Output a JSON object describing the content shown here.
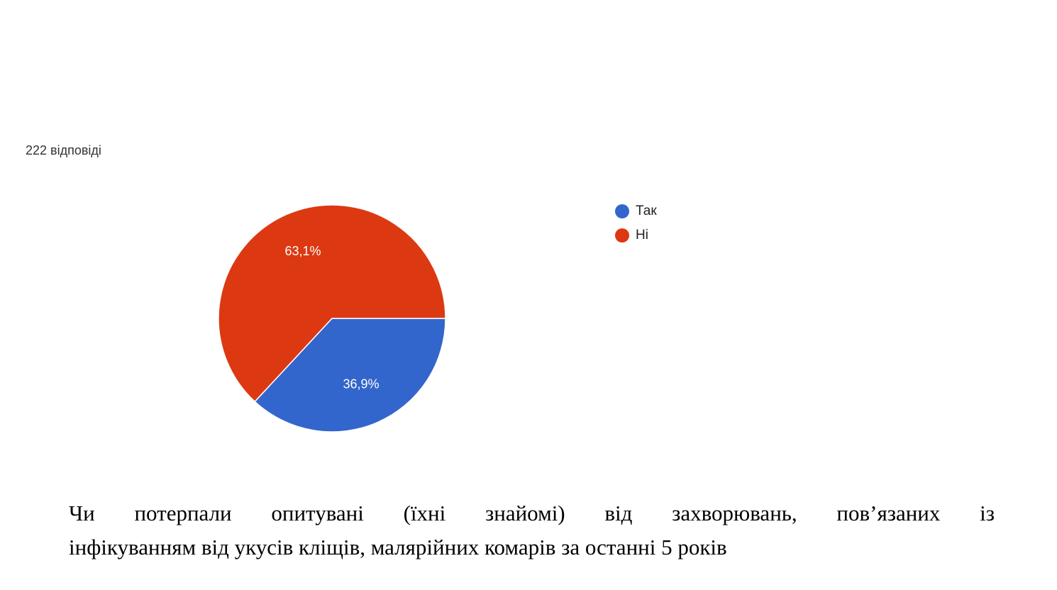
{
  "chart_data": {
    "type": "pie",
    "subtitle": "222 відповіді",
    "categories": [
      "Так",
      "Ні"
    ],
    "values": [
      36.9,
      63.1
    ],
    "value_labels": [
      "36,9%",
      "63,1%"
    ],
    "colors": [
      "#3366cc",
      "#dc3912"
    ],
    "legend": "right",
    "caption": [
      "Чи потерпали опитувані (їхні знайомі) від захворювань, пов’язаних із",
      "інфікуванням від укусів кліщів, малярійних комарів за останні 5 років"
    ]
  }
}
